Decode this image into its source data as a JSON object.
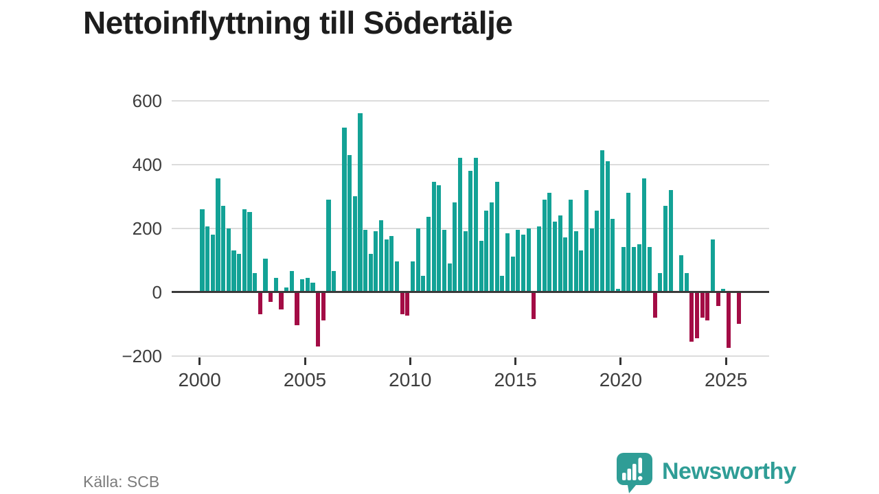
{
  "title": "Nettoinflyttning till Södertälje",
  "source": "Källa: SCB",
  "brand": {
    "name": "Newsworthy",
    "color": "#2f9d96"
  },
  "chart_data": {
    "type": "bar",
    "title": "Nettoinflyttning till Södertälje",
    "frequency": "quarterly",
    "start_year": 2000,
    "start_quarter": 1,
    "ylim": [
      -200,
      600
    ],
    "grid": true,
    "y_ticks": [
      600,
      400,
      200,
      0,
      -200
    ],
    "y_tick_labels": [
      "600",
      "400",
      "200",
      "0",
      "−200"
    ],
    "x_tick_years": [
      2000,
      2005,
      2010,
      2015,
      2020,
      2025
    ],
    "x_tick_labels": [
      "2000",
      "2005",
      "2010",
      "2015",
      "2020",
      "2025"
    ],
    "positive_color": "#13a296",
    "negative_color": "#a30c45",
    "values": [
      260,
      205,
      180,
      355,
      270,
      200,
      130,
      120,
      260,
      250,
      60,
      -70,
      105,
      -30,
      45,
      -55,
      15,
      65,
      -105,
      40,
      45,
      30,
      -170,
      -90,
      290,
      65,
      0,
      515,
      430,
      300,
      560,
      195,
      120,
      190,
      225,
      165,
      175,
      95,
      -70,
      -75,
      95,
      200,
      50,
      235,
      345,
      335,
      195,
      90,
      280,
      420,
      190,
      380,
      420,
      160,
      255,
      280,
      345,
      50,
      185,
      110,
      195,
      180,
      200,
      -85,
      205,
      290,
      310,
      220,
      240,
      170,
      290,
      190,
      130,
      320,
      200,
      255,
      445,
      410,
      230,
      10,
      140,
      310,
      140,
      150,
      355,
      140,
      -80,
      60,
      270,
      320,
      0,
      115,
      60,
      -155,
      -145,
      -80,
      -90,
      165,
      -45,
      10,
      -175,
      0,
      -100
    ]
  }
}
